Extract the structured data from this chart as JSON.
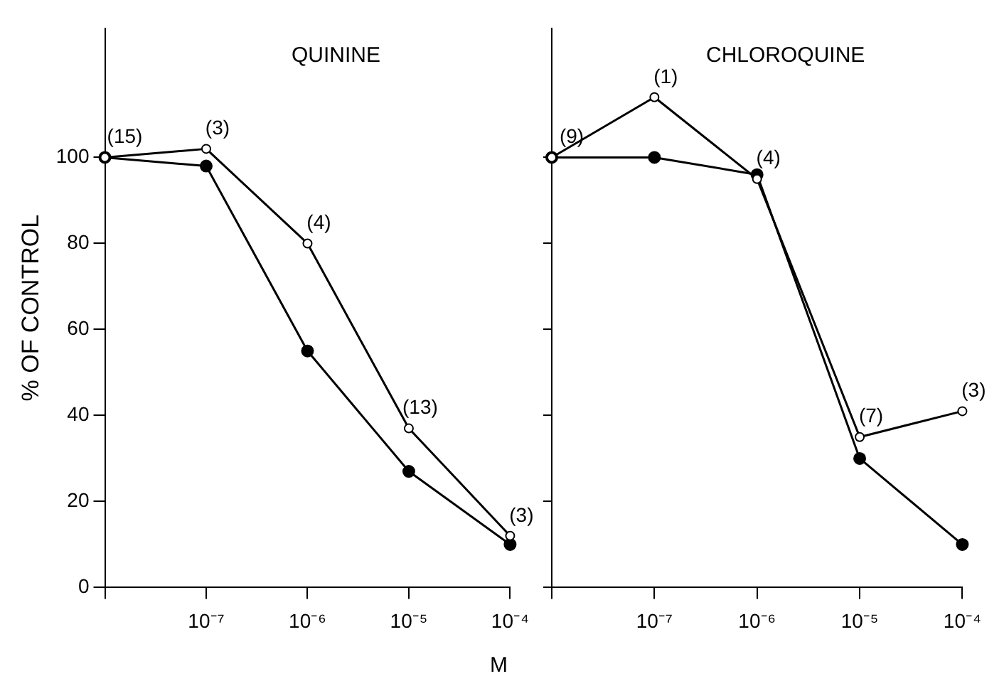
{
  "chart_data": [
    {
      "type": "line",
      "title": "QUININE",
      "ylabel": "% OF CONTROL",
      "xlabel": "M",
      "categories": [
        null,
        "10⁻⁷",
        "10⁻⁶",
        "10⁻⁵",
        "10⁻⁴"
      ],
      "series": [
        {
          "color": "#000000",
          "values": [
            100,
            102,
            80,
            37,
            12
          ]
        },
        {
          "color": "#000000",
          "values": [
            100,
            98,
            55,
            27,
            10
          ]
        }
      ],
      "annotations": [
        {
          "text": "(15)",
          "y": 100
        },
        {
          "text": "(3)",
          "x": "10⁻⁷",
          "y": 102
        },
        {
          "text": "(4)",
          "x": "10⁻⁶",
          "y": 80
        },
        {
          "text": "(13)",
          "x": "10⁻⁵",
          "y": 37
        },
        {
          "text": "(3)",
          "x": "10⁻⁴",
          "y": 12
        }
      ],
      "ylim": [
        0,
        130
      ],
      "yticks": [
        0,
        20,
        40,
        60,
        80,
        100
      ],
      "grid": false,
      "legend": false,
      "marker": "circle",
      "line_style": "solid"
    },
    {
      "type": "line",
      "title": "CHLOROQUINE",
      "categories": [
        null,
        "10⁻⁷",
        "10⁻⁶",
        "10⁻⁵",
        "10⁻⁴"
      ],
      "series": [
        {
          "color": "#000000",
          "values": [
            100,
            114,
            95,
            35,
            41
          ]
        },
        {
          "color": "#000000",
          "values": [
            100,
            100,
            96,
            30,
            10
          ]
        }
      ],
      "annotations": [
        {
          "text": "(9)",
          "y": 100
        },
        {
          "text": "(1)",
          "x": "10⁻⁷",
          "y": 114
        },
        {
          "text": "(4)",
          "x": "10⁻⁶",
          "y": 95
        },
        {
          "text": "(7)",
          "x": "10⁻⁵",
          "y": 35
        },
        {
          "text": "(3)",
          "x": "10⁻⁴",
          "y": 41
        }
      ],
      "ylim": [
        0,
        130
      ],
      "yticks": [
        0,
        20,
        40,
        60,
        80,
        100
      ],
      "grid": false,
      "legend": false,
      "marker": "circle",
      "line_style": "solid",
      "tick_labels": "x"
    }
  ]
}
